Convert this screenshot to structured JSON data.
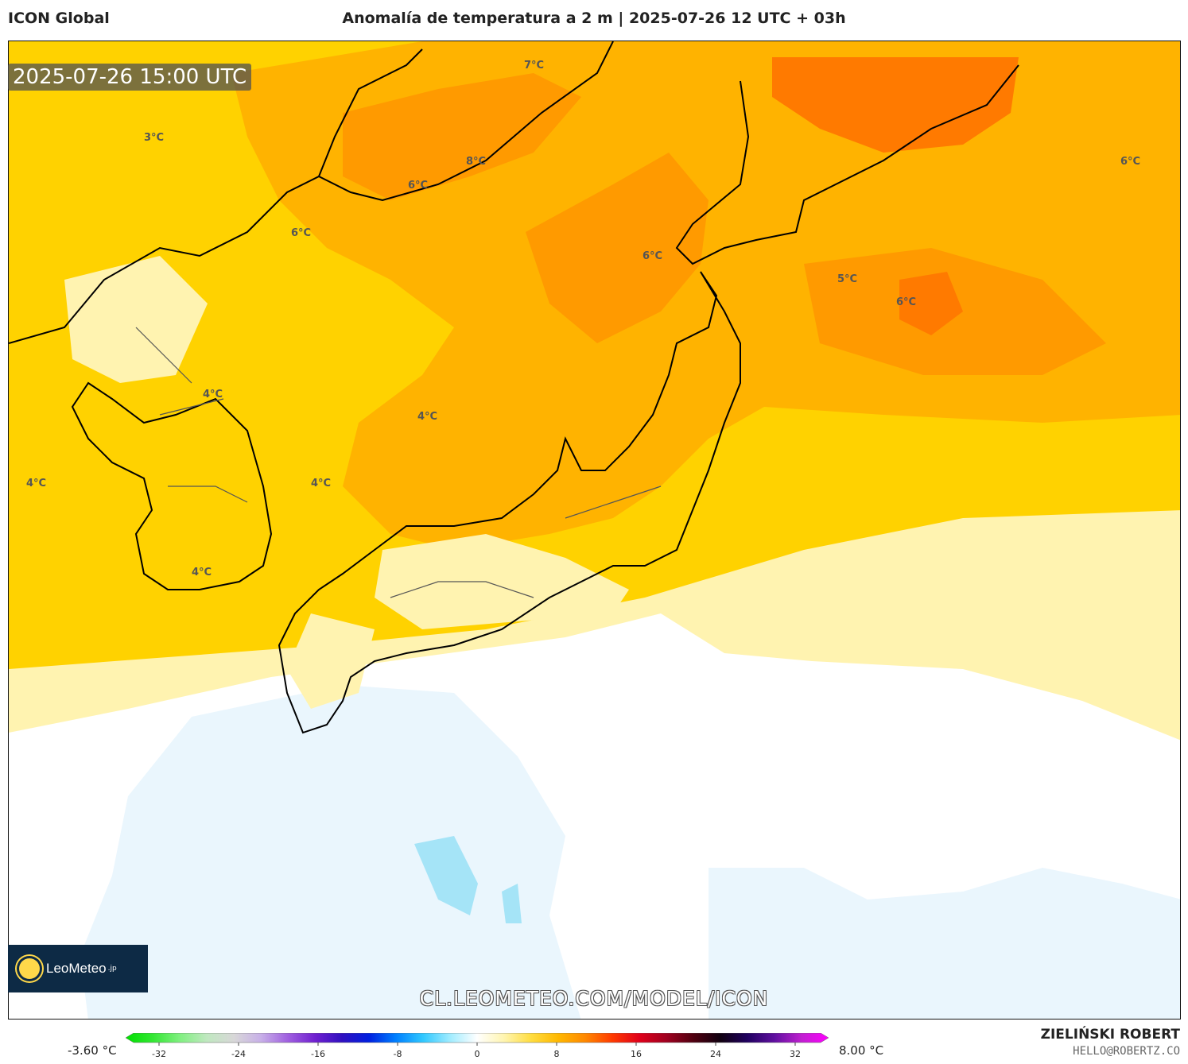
{
  "header": {
    "model": "ICON Global",
    "title": "Anomalía de temperatura a 2 m | 2025-07-26 12 UTC + 03h"
  },
  "map": {
    "timestamp": "2025-07-26 15:00 UTC",
    "contour_labels": [
      "3°C",
      "7°C",
      "8°C",
      "6°C",
      "6°C",
      "6°C",
      "6°C",
      "5°C",
      "6°C",
      "4°C",
      "4°C",
      "4°C",
      "4°C",
      "4°C"
    ],
    "colors": {
      "anom_0_1": "#fff3b0",
      "anom_1_2": "#ffe85a",
      "anom_2_4": "#ffd200",
      "anom_4_6": "#ffb300",
      "anom_6_8": "#ff8c00",
      "anom_neg": "#eaf6fd",
      "anom_neg2": "#a5e4f7",
      "land_line": "#000000",
      "border_line": "#555555"
    }
  },
  "logo": {
    "brand": "LeoMeteo",
    "suffix": ".jp"
  },
  "watermark": "CL.LEOMETEO.COM/MODEL/ICON",
  "colorbar": {
    "min_label": "-3.60 °C",
    "max_label": "8.00 °C",
    "ticks": [
      "-32",
      "-24",
      "-16",
      "-8",
      "0",
      "8",
      "16",
      "24",
      "32"
    ],
    "stops": [
      "#00e000",
      "#33e733",
      "#80f080",
      "#c0e8c0",
      "#d8d8d8",
      "#c8b0e8",
      "#a060e0",
      "#7020d0",
      "#3010c0",
      "#0020e0",
      "#0080ff",
      "#30c8ff",
      "#a0ecff",
      "#ffffff",
      "#fff5b0",
      "#ffdd40",
      "#ffb800",
      "#ff8800",
      "#ff3a00",
      "#e0001a",
      "#a00020",
      "#500010",
      "#100010",
      "#200060",
      "#6010a0",
      "#c020d0",
      "#ff00ff"
    ]
  },
  "credits": {
    "author": "ZIELIŃSKI ROBERT",
    "email": "HELLO@ROBERTZ.CO"
  }
}
